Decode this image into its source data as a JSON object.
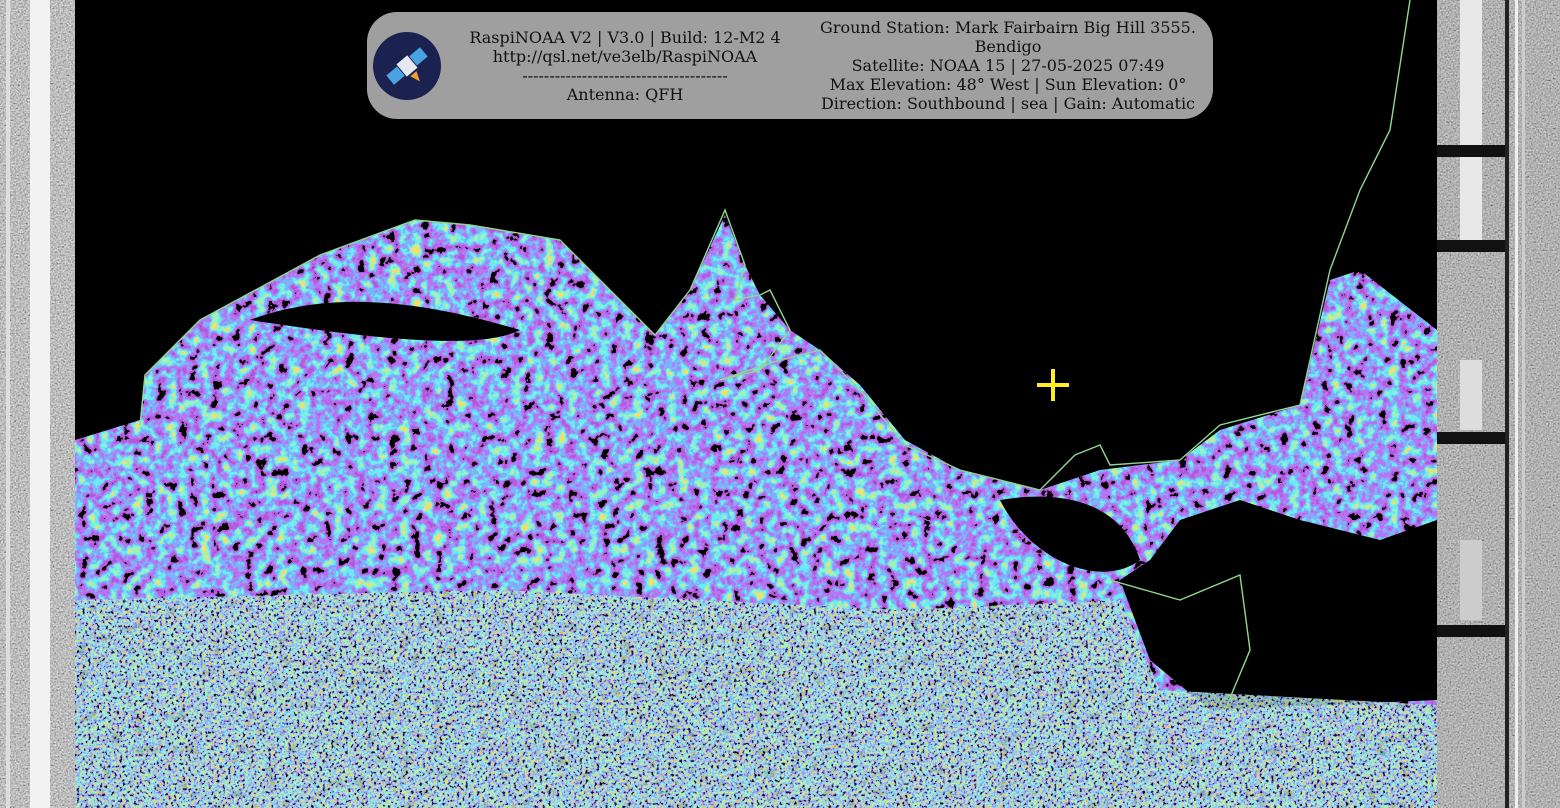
{
  "header": {
    "left_lines": [
      "RaspiNOAA V2 | V3.0 | Build: 12-M2 4",
      "http://qsl.net/ve3elb/RaspiNOAA",
      "--------------------------------------",
      "Antenna: QFH"
    ],
    "right_lines": [
      "Ground Station: Mark Fairbairn Big Hill 3555.",
      "Bendigo",
      "Satellite: NOAA 15 | 27-05-2025 07:49",
      "Max Elevation: 48° West | Sun Elevation: 0°",
      "Direction: Southbound | sea | Gain: Automatic"
    ]
  }
}
